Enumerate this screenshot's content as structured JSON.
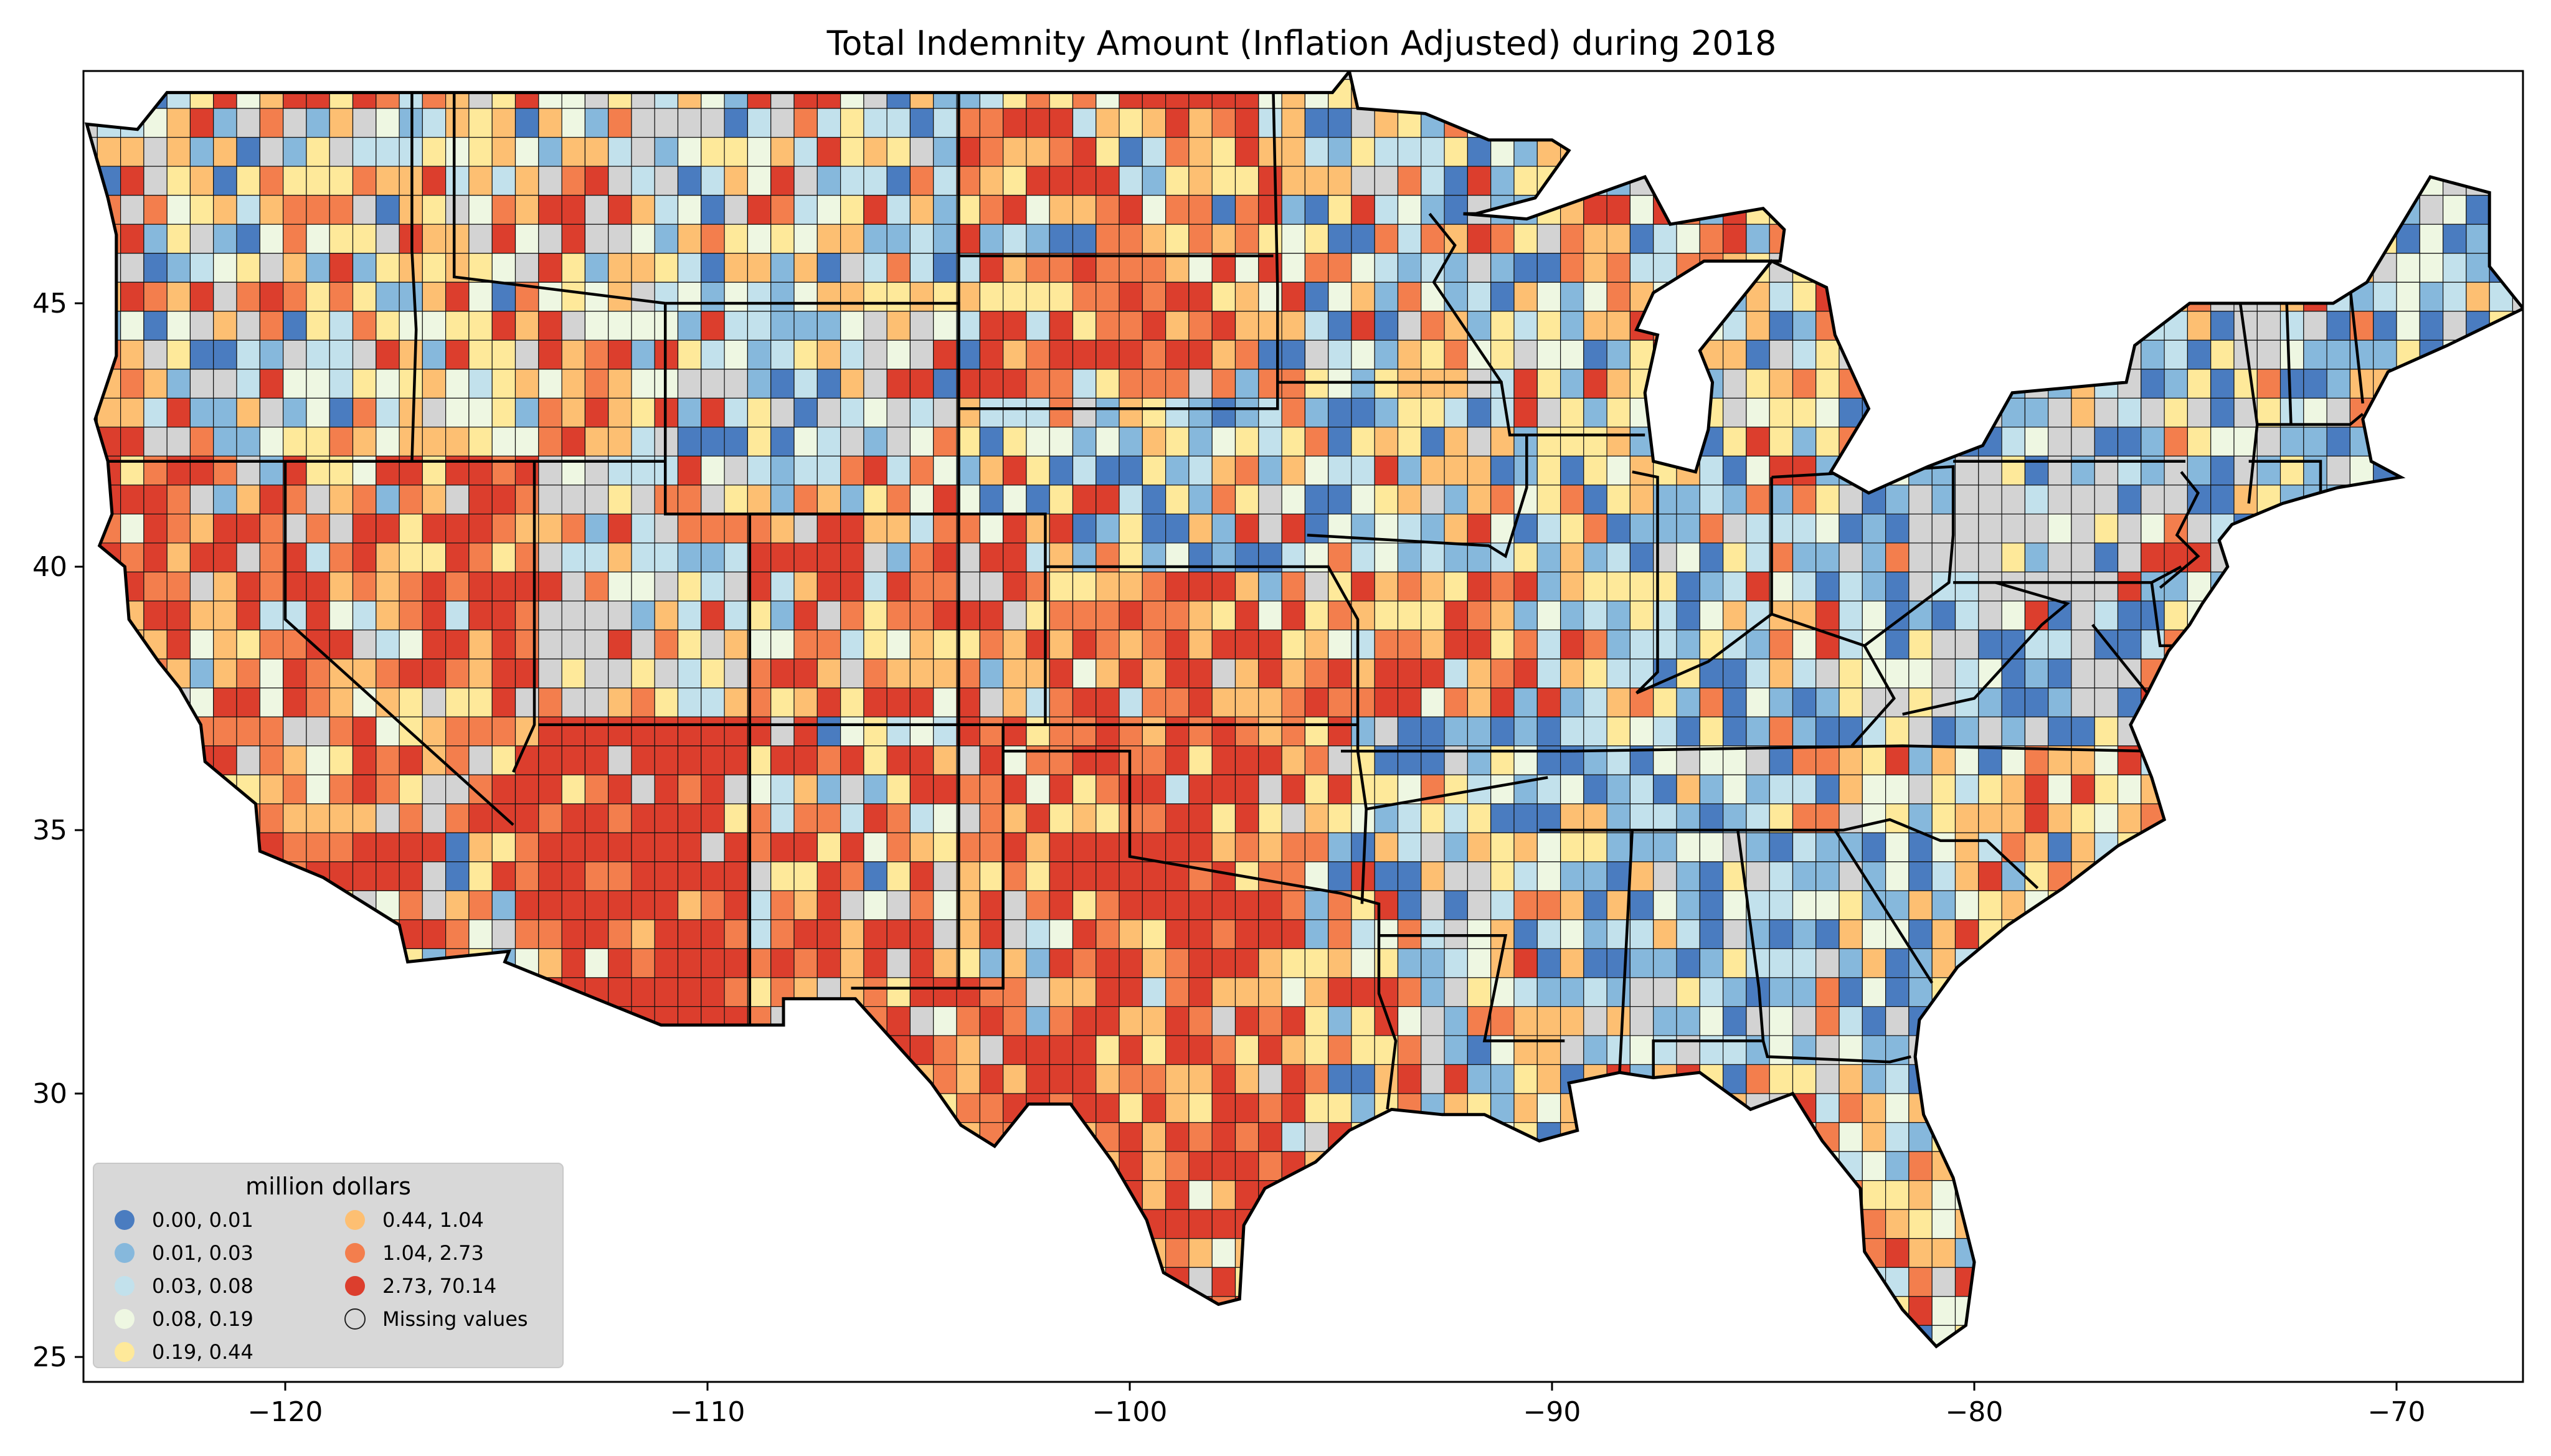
{
  "title": "Total Indemnity Amount  (Inflation Adjusted) during 2018",
  "x_ticks": [
    {
      "lon": -120,
      "label": "−120"
    },
    {
      "lon": -110,
      "label": "−110"
    },
    {
      "lon": -100,
      "label": "−100"
    },
    {
      "lon": -90,
      "label": "−90"
    },
    {
      "lon": -80,
      "label": "−80"
    },
    {
      "lon": -70,
      "label": "−70"
    }
  ],
  "y_ticks": [
    {
      "lat": 45,
      "label": "45"
    },
    {
      "lat": 40,
      "label": "40"
    },
    {
      "lat": 35,
      "label": "35"
    },
    {
      "lat": 30,
      "label": "30"
    },
    {
      "lat": 25,
      "label": "25"
    }
  ],
  "legend": {
    "title": "million dollars",
    "entries": [
      {
        "label": "0.00,  0.01",
        "color": "#4a7cc0"
      },
      {
        "label": "0.01,  0.03",
        "color": "#86b8dc"
      },
      {
        "label": "0.03,  0.08",
        "color": "#c2e1ec"
      },
      {
        "label": "0.08,  0.19",
        "color": "#eef7e2"
      },
      {
        "label": "0.19,  0.44",
        "color": "#fee99a"
      },
      {
        "label": "0.44,  1.04",
        "color": "#fdbf72"
      },
      {
        "label": "1.04,  2.73",
        "color": "#f37e4d"
      },
      {
        "label": "2.73, 70.14",
        "color": "#dc3e2d"
      },
      {
        "label": "Missing values",
        "color": "#d3d3d3"
      }
    ]
  },
  "palette": {
    "missing": "#d3d3d3"
  }
}
